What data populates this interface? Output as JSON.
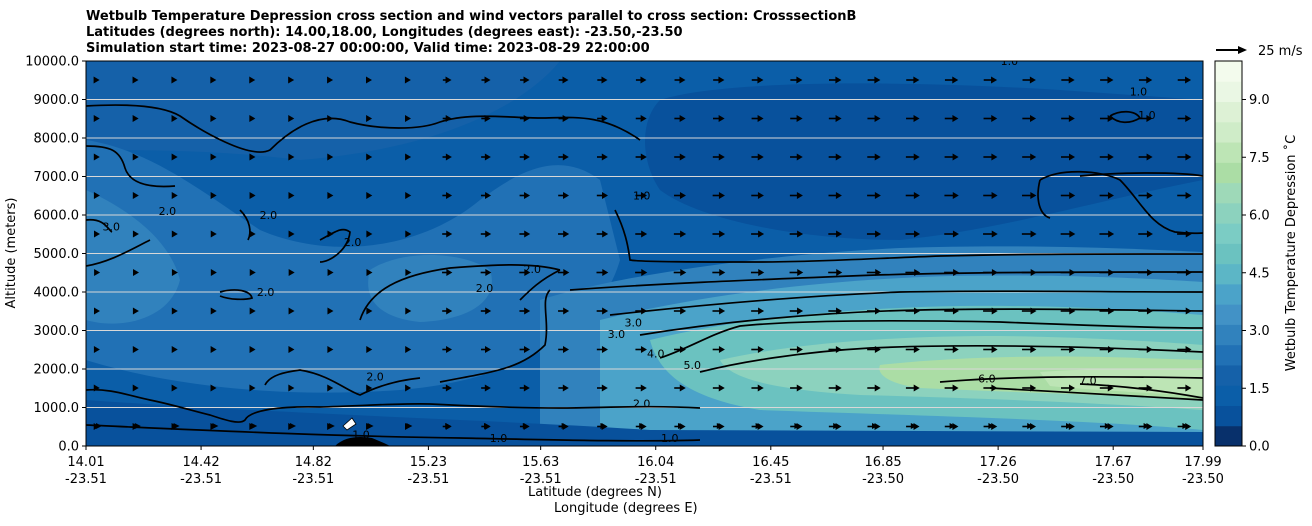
{
  "title_lines": [
    "Wetbulb Temperature Depression cross section and wind vectors parallel to cross section: CrosssectionB",
    "Latitudes (degrees north): 14.00,18.00, Longitudes (degrees east): -23.50,-23.50",
    "Simulation start time: 2023-08-27 00:00:00, Valid time: 2023-08-29 22:00:00"
  ],
  "chart_data": {
    "type": "heatmap",
    "xlabel": "Latitude (degrees N)",
    "xlabel2": "Longitude (degrees E)",
    "ylabel": "Altitude (meters)",
    "xlim": [
      14.01,
      17.99
    ],
    "ylim": [
      0,
      10000
    ],
    "x_ticks": [
      {
        "lat": "14.01",
        "lon": "-23.51",
        "value": 14.01
      },
      {
        "lat": "14.42",
        "lon": "-23.51",
        "value": 14.42
      },
      {
        "lat": "14.82",
        "lon": "-23.51",
        "value": 14.82
      },
      {
        "lat": "15.23",
        "lon": "-23.51",
        "value": 15.23
      },
      {
        "lat": "15.63",
        "lon": "-23.51",
        "value": 15.63
      },
      {
        "lat": "16.04",
        "lon": "-23.51",
        "value": 16.04
      },
      {
        "lat": "16.45",
        "lon": "-23.51",
        "value": 16.45
      },
      {
        "lat": "16.85",
        "lon": "-23.50",
        "value": 16.85
      },
      {
        "lat": "17.26",
        "lon": "-23.50",
        "value": 17.26
      },
      {
        "lat": "17.67",
        "lon": "-23.50",
        "value": 17.67
      },
      {
        "lat": "17.99",
        "lon": "-23.50",
        "value": 17.99
      }
    ],
    "y_ticks": [
      "0.0",
      "1000.0",
      "2000.0",
      "3000.0",
      "4000.0",
      "5000.0",
      "6000.0",
      "7000.0",
      "8000.0",
      "9000.0",
      "10000.0"
    ],
    "y_tick_values": [
      0,
      1000,
      2000,
      3000,
      4000,
      5000,
      6000,
      7000,
      8000,
      9000,
      10000
    ],
    "grid": "horizontal",
    "colorbar": {
      "label": "Wetbulb Temperature Depression ˚C",
      "range": [
        0,
        10
      ],
      "ticks": [
        "0.0",
        "1.5",
        "3.0",
        "4.5",
        "6.0",
        "7.5",
        "9.0"
      ],
      "tick_values": [
        0,
        1.5,
        3.0,
        4.5,
        6.0,
        7.5,
        9.0
      ],
      "colors": [
        "#08306b",
        "#08519c",
        "#0b5ea8",
        "#1561a9",
        "#2171b5",
        "#3182bd",
        "#4292c6",
        "#4ba3c9",
        "#5cb6c6",
        "#6bc2c0",
        "#7bccc4",
        "#8cd2be",
        "#9ed9b8",
        "#abdda5",
        "#bde5b5",
        "#cfecc8",
        "#ddf1d5",
        "#eaf7e4",
        "#f3fbed"
      ]
    },
    "wind_key": {
      "label": "25 m/s",
      "value": 25
    },
    "contour_labels": [
      {
        "text": "3.0",
        "x": 14.1,
        "y": 5600
      },
      {
        "text": "2.0",
        "x": 14.3,
        "y": 6000
      },
      {
        "text": "2.0",
        "x": 14.66,
        "y": 5900
      },
      {
        "text": "2.0",
        "x": 14.96,
        "y": 5200
      },
      {
        "text": "2.0",
        "x": 14.65,
        "y": 3900
      },
      {
        "text": "2.0",
        "x": 15.04,
        "y": 1700
      },
      {
        "text": "2.0",
        "x": 15.6,
        "y": 4500
      },
      {
        "text": "2.0",
        "x": 15.43,
        "y": 4000
      },
      {
        "text": "1.0",
        "x": 15.99,
        "y": 6400
      },
      {
        "text": "3.0",
        "x": 15.9,
        "y": 2800
      },
      {
        "text": "3.0",
        "x": 15.96,
        "y": 3100
      },
      {
        "text": "4.0",
        "x": 16.04,
        "y": 2300
      },
      {
        "text": "5.0",
        "x": 16.17,
        "y": 2000
      },
      {
        "text": "6.0",
        "x": 17.22,
        "y": 1650
      },
      {
        "text": "7.0",
        "x": 17.58,
        "y": 1600
      },
      {
        "text": "2.0",
        "x": 15.99,
        "y": 1000
      },
      {
        "text": "1.0",
        "x": 14.99,
        "y": 200
      },
      {
        "text": "1.0",
        "x": 15.48,
        "y": 100
      },
      {
        "text": "1.0",
        "x": 16.09,
        "y": 100
      },
      {
        "text": "1.0",
        "x": 17.3,
        "y": 9900
      },
      {
        "text": "1.0",
        "x": 17.76,
        "y": 9100
      },
      {
        "text": "1.0",
        "x": 17.79,
        "y": 8500
      }
    ]
  }
}
